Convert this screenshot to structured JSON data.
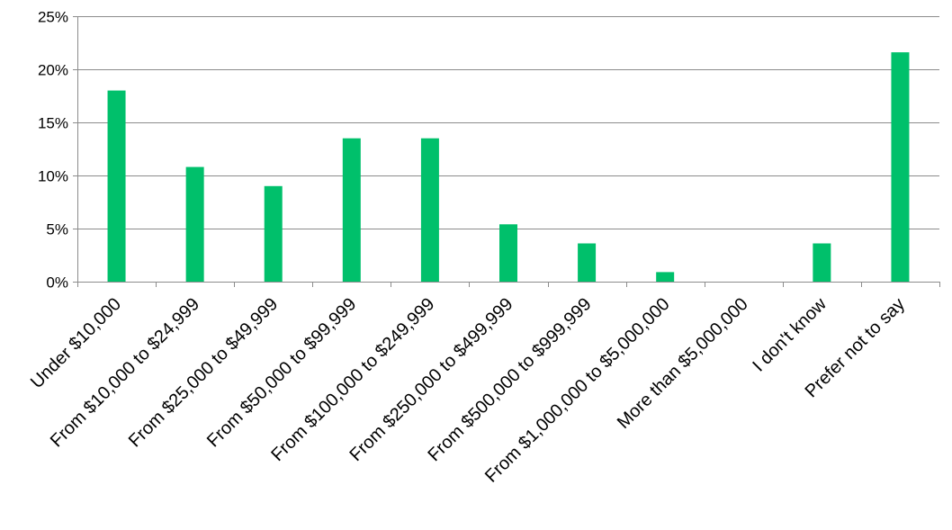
{
  "chart_data": {
    "type": "bar",
    "categories": [
      "Under $10,000",
      "From $10,000 to $24,999",
      "From $25,000 to $49,999",
      "From $50,000 to $99,999",
      "From $100,000 to $249,999",
      "From $250,000 to $499,999",
      "From $500,000 to $999,999",
      "From $1,000,000 to $5,000,000",
      "More than $5,000,000",
      "I don't know",
      "Prefer not to say"
    ],
    "values": [
      18.0,
      10.8,
      9.0,
      13.5,
      13.5,
      5.4,
      3.6,
      0.9,
      0.0,
      3.6,
      21.6
    ],
    "title": "",
    "xlabel": "",
    "ylabel": "",
    "ylim": [
      0,
      25
    ],
    "yticks": [
      "0%",
      "5%",
      "10%",
      "15%",
      "20%",
      "25%"
    ],
    "grid": true,
    "legend": "none",
    "colors": {
      "bar": "#00c06b",
      "grid": "#8c8c8c",
      "text": "#000000"
    }
  }
}
